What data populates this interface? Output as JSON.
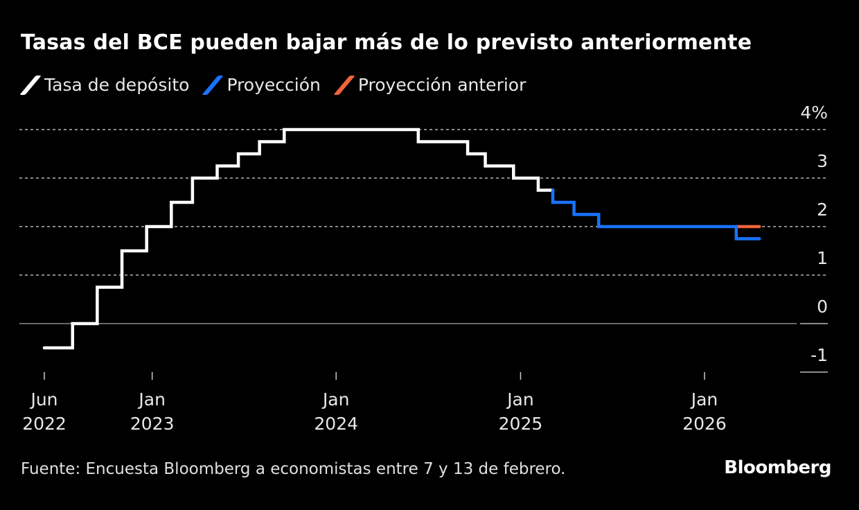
{
  "title": "Tasas del BCE pueden bajar más de lo previsto anteriormente",
  "source": "Fuente: Encuesta Bloomberg a economistas entre 7 y 13 de febrero.",
  "brand": "Bloomberg",
  "chart_data": {
    "type": "line",
    "step": true,
    "title": "Tasas del BCE pueden bajar más de lo previsto anteriormente",
    "xlabel": "",
    "ylabel": "",
    "ylim": [
      -1,
      4
    ],
    "y_ticks": [
      {
        "value": 4,
        "label": "4%"
      },
      {
        "value": 3,
        "label": "3"
      },
      {
        "value": 2,
        "label": "2"
      },
      {
        "value": 1,
        "label": "1"
      },
      {
        "value": 0,
        "label": "0"
      },
      {
        "value": -1,
        "label": "-1"
      }
    ],
    "x_ticks": [
      {
        "date": "2022-06-01",
        "label": [
          "Jun",
          "2022"
        ]
      },
      {
        "date": "2023-01-01",
        "label": [
          "Jan",
          "2023"
        ]
      },
      {
        "date": "2024-01-01",
        "label": [
          "Jan",
          "2024"
        ]
      },
      {
        "date": "2025-01-01",
        "label": [
          "Jan",
          "2025"
        ]
      },
      {
        "date": "2026-01-01",
        "label": [
          "Jan",
          "2026"
        ]
      }
    ],
    "grid": true,
    "legend_position": "top-left",
    "series": [
      {
        "name": "Tasa de depósito",
        "color": "#ffffff",
        "points": [
          [
            "2022-06-01",
            -0.5
          ],
          [
            "2022-07-27",
            0.0
          ],
          [
            "2022-09-14",
            0.75
          ],
          [
            "2022-11-02",
            1.5
          ],
          [
            "2022-12-21",
            2.0
          ],
          [
            "2023-02-08",
            2.5
          ],
          [
            "2023-03-22",
            3.0
          ],
          [
            "2023-05-10",
            3.25
          ],
          [
            "2023-06-21",
            3.5
          ],
          [
            "2023-08-02",
            3.75
          ],
          [
            "2023-09-20",
            4.0
          ],
          [
            "2024-06-12",
            3.75
          ],
          [
            "2024-09-18",
            3.5
          ],
          [
            "2024-10-23",
            3.25
          ],
          [
            "2024-12-18",
            3.0
          ],
          [
            "2025-02-05",
            2.75
          ],
          [
            "2025-03-06",
            2.75
          ]
        ]
      },
      {
        "name": "Proyección",
        "color": "#1a73ff",
        "points": [
          [
            "2025-03-06",
            2.75
          ],
          [
            "2025-03-06",
            2.5
          ],
          [
            "2025-04-17",
            2.25
          ],
          [
            "2025-06-05",
            2.0
          ],
          [
            "2026-03-05",
            1.75
          ],
          [
            "2026-04-20",
            1.75
          ]
        ]
      },
      {
        "name": "Proyección anterior",
        "color": "#f0643c",
        "points": [
          [
            "2026-03-05",
            2.0
          ],
          [
            "2026-04-20",
            2.0
          ]
        ]
      }
    ]
  }
}
